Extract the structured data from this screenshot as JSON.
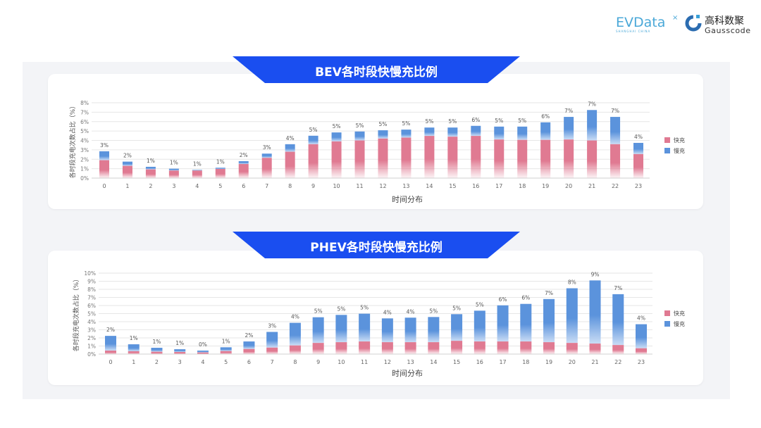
{
  "logos": {
    "evdata": "EVData",
    "evdata_sub": "SHANGHAI CHINA",
    "gauss_cn": "高科数聚",
    "gauss_en": "Gausscode"
  },
  "colors": {
    "fast": "#e07a92",
    "slow": "#5b93dc",
    "banner": "#1a4ef0",
    "panel": "#f3f4f7"
  },
  "chart_data": [
    {
      "type": "bar",
      "stacked": true,
      "title": "BEV各时段快慢充比例",
      "xlabel": "时间分布",
      "ylabel": "各时段充电次数占比（%）",
      "ylim": [
        0,
        8
      ],
      "yticks": [
        "0%",
        "1%",
        "2%",
        "3%",
        "4%",
        "5%",
        "6%",
        "7%",
        "8%"
      ],
      "grid": true,
      "legend": "right",
      "categories": [
        "0",
        "1",
        "2",
        "3",
        "4",
        "5",
        "6",
        "7",
        "8",
        "9",
        "10",
        "11",
        "12",
        "13",
        "14",
        "15",
        "16",
        "17",
        "18",
        "19",
        "20",
        "21",
        "22",
        "23"
      ],
      "series": [
        {
          "name": "快充",
          "color": "#e07a92",
          "values": [
            1.9,
            1.3,
            0.92,
            0.8,
            0.8,
            0.97,
            1.5,
            2.15,
            2.8,
            3.6,
            3.9,
            4.0,
            4.2,
            4.3,
            4.48,
            4.4,
            4.48,
            4.1,
            4.06,
            4.06,
            4.1,
            4.0,
            3.6,
            2.55
          ]
        },
        {
          "name": "慢充",
          "color": "#5b93dc",
          "values": [
            0.95,
            0.45,
            0.28,
            0.2,
            0.07,
            0.13,
            0.3,
            0.45,
            0.8,
            0.9,
            0.95,
            0.95,
            0.88,
            0.85,
            0.89,
            0.97,
            1.07,
            1.37,
            1.41,
            1.86,
            2.4,
            3.23,
            2.9,
            1.19
          ]
        }
      ],
      "data_labels": [
        "3%",
        "2%",
        "1%",
        "1%",
        "1%",
        "1%",
        "2%",
        "3%",
        "4%",
        "5%",
        "5%",
        "5%",
        "5%",
        "5%",
        "5%",
        "5%",
        "6%",
        "5%",
        "5%",
        "6%",
        "7%",
        "7%",
        "7%",
        "4%"
      ]
    },
    {
      "type": "bar",
      "stacked": true,
      "title": "PHEV各时段快慢充比例",
      "xlabel": "时间分布",
      "ylabel": "各时段充电次数占比（%）",
      "ylim": [
        0,
        10
      ],
      "yticks": [
        "0%",
        "1%",
        "2%",
        "3%",
        "4%",
        "5%",
        "6%",
        "7%",
        "8%",
        "9%",
        "10%"
      ],
      "grid": true,
      "legend": "right",
      "categories": [
        "0",
        "1",
        "2",
        "3",
        "4",
        "5",
        "6",
        "7",
        "8",
        "9",
        "10",
        "11",
        "12",
        "13",
        "14",
        "15",
        "16",
        "17",
        "18",
        "19",
        "20",
        "21",
        "22",
        "23"
      ],
      "series": [
        {
          "name": "快充",
          "color": "#e07a92",
          "values": [
            0.43,
            0.35,
            0.29,
            0.26,
            0.2,
            0.37,
            0.63,
            0.8,
            1.07,
            1.38,
            1.47,
            1.56,
            1.47,
            1.47,
            1.47,
            1.64,
            1.56,
            1.56,
            1.56,
            1.47,
            1.38,
            1.3,
            1.12,
            0.72
          ]
        },
        {
          "name": "慢充",
          "color": "#5b93dc",
          "values": [
            1.82,
            0.86,
            0.49,
            0.34,
            0.23,
            0.47,
            0.93,
            1.94,
            2.79,
            3.17,
            3.37,
            3.43,
            2.94,
            3.03,
            3.11,
            3.29,
            3.8,
            4.46,
            4.64,
            5.33,
            6.75,
            7.8,
            6.28,
            2.97
          ]
        }
      ],
      "data_labels": [
        "2%",
        "1%",
        "1%",
        "1%",
        "0%",
        "1%",
        "2%",
        "3%",
        "4%",
        "5%",
        "5%",
        "5%",
        "4%",
        "4%",
        "5%",
        "5%",
        "5%",
        "6%",
        "6%",
        "7%",
        "8%",
        "9%",
        "7%",
        "4%"
      ]
    }
  ]
}
